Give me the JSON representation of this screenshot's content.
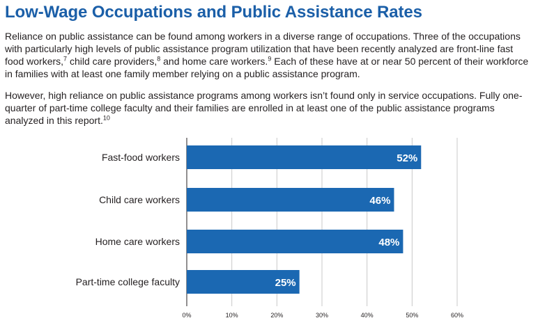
{
  "header": {
    "title": "Low-Wage Occupations and Public Assistance Rates"
  },
  "body": {
    "paragraph1": [
      {
        "text": "Reliance on public assistance can be found among workers in a diverse range of occupations. Three of the occupations with particularly high levels of public assistance program utilization that have been recently analyzed are front-line fast food workers,"
      },
      {
        "sup": "7"
      },
      {
        "text": " child care providers,"
      },
      {
        "sup": "8"
      },
      {
        "text": " and home care workers."
      },
      {
        "sup": "9"
      },
      {
        "text": " Each of these have at or near 50 percent of their workforce in families with at least one family member relying on a public assistance program."
      }
    ],
    "paragraph2": [
      {
        "text": "However, high reliance on public assistance programs among workers isn’t found only in service occupations. Fully one-quarter of part-time college faculty and their families are enrolled in at least one of the public assistance programs analyzed in this report."
      },
      {
        "sup": "10"
      }
    ]
  },
  "colors": {
    "title": "#1b5fa8",
    "bar": "#1b68b2",
    "grid": "#c8c8c8",
    "axis": "#231f20"
  },
  "chart_data": {
    "type": "bar",
    "orientation": "horizontal",
    "categories": [
      "Fast-food workers",
      "Child care workers",
      "Home care workers",
      "Part-time college faculty"
    ],
    "values": [
      52,
      46,
      48,
      25
    ],
    "value_labels": [
      "52%",
      "46%",
      "48%",
      "25%"
    ],
    "xlim": [
      0,
      60
    ],
    "xticks": [
      0,
      10,
      20,
      30,
      40,
      50,
      60
    ],
    "xtick_labels": [
      "0%",
      "10%",
      "20%",
      "30%",
      "40%",
      "50%",
      "60%"
    ],
    "grid": true
  }
}
